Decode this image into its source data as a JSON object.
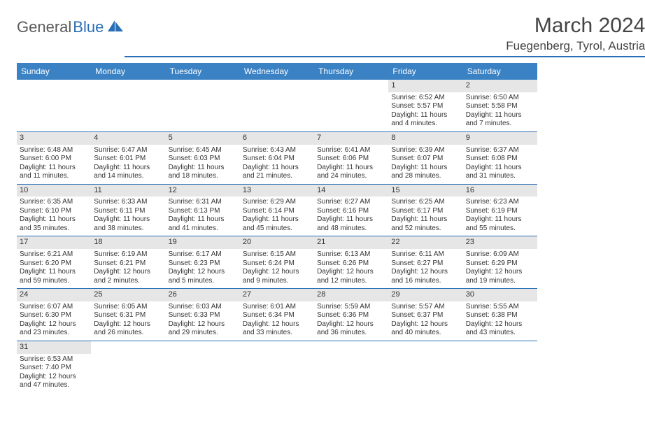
{
  "logo": {
    "part1": "General",
    "part2": "Blue"
  },
  "title": "March 2024",
  "location": "Fuegenberg, Tyrol, Austria",
  "colors": {
    "header_bg": "#3b82c4",
    "header_text": "#ffffff",
    "day_num_bg": "#e6e6e6",
    "border": "#2a6fb5",
    "text": "#333333",
    "logo_gray": "#5a5a5a",
    "logo_blue": "#2a6fb5"
  },
  "day_names": [
    "Sunday",
    "Monday",
    "Tuesday",
    "Wednesday",
    "Thursday",
    "Friday",
    "Saturday"
  ],
  "weeks": [
    [
      null,
      null,
      null,
      null,
      null,
      {
        "n": "1",
        "sunrise": "6:52 AM",
        "sunset": "5:57 PM",
        "daylight": "11 hours and 4 minutes."
      },
      {
        "n": "2",
        "sunrise": "6:50 AM",
        "sunset": "5:58 PM",
        "daylight": "11 hours and 7 minutes."
      }
    ],
    [
      {
        "n": "3",
        "sunrise": "6:48 AM",
        "sunset": "6:00 PM",
        "daylight": "11 hours and 11 minutes."
      },
      {
        "n": "4",
        "sunrise": "6:47 AM",
        "sunset": "6:01 PM",
        "daylight": "11 hours and 14 minutes."
      },
      {
        "n": "5",
        "sunrise": "6:45 AM",
        "sunset": "6:03 PM",
        "daylight": "11 hours and 18 minutes."
      },
      {
        "n": "6",
        "sunrise": "6:43 AM",
        "sunset": "6:04 PM",
        "daylight": "11 hours and 21 minutes."
      },
      {
        "n": "7",
        "sunrise": "6:41 AM",
        "sunset": "6:06 PM",
        "daylight": "11 hours and 24 minutes."
      },
      {
        "n": "8",
        "sunrise": "6:39 AM",
        "sunset": "6:07 PM",
        "daylight": "11 hours and 28 minutes."
      },
      {
        "n": "9",
        "sunrise": "6:37 AM",
        "sunset": "6:08 PM",
        "daylight": "11 hours and 31 minutes."
      }
    ],
    [
      {
        "n": "10",
        "sunrise": "6:35 AM",
        "sunset": "6:10 PM",
        "daylight": "11 hours and 35 minutes."
      },
      {
        "n": "11",
        "sunrise": "6:33 AM",
        "sunset": "6:11 PM",
        "daylight": "11 hours and 38 minutes."
      },
      {
        "n": "12",
        "sunrise": "6:31 AM",
        "sunset": "6:13 PM",
        "daylight": "11 hours and 41 minutes."
      },
      {
        "n": "13",
        "sunrise": "6:29 AM",
        "sunset": "6:14 PM",
        "daylight": "11 hours and 45 minutes."
      },
      {
        "n": "14",
        "sunrise": "6:27 AM",
        "sunset": "6:16 PM",
        "daylight": "11 hours and 48 minutes."
      },
      {
        "n": "15",
        "sunrise": "6:25 AM",
        "sunset": "6:17 PM",
        "daylight": "11 hours and 52 minutes."
      },
      {
        "n": "16",
        "sunrise": "6:23 AM",
        "sunset": "6:19 PM",
        "daylight": "11 hours and 55 minutes."
      }
    ],
    [
      {
        "n": "17",
        "sunrise": "6:21 AM",
        "sunset": "6:20 PM",
        "daylight": "11 hours and 59 minutes."
      },
      {
        "n": "18",
        "sunrise": "6:19 AM",
        "sunset": "6:21 PM",
        "daylight": "12 hours and 2 minutes."
      },
      {
        "n": "19",
        "sunrise": "6:17 AM",
        "sunset": "6:23 PM",
        "daylight": "12 hours and 5 minutes."
      },
      {
        "n": "20",
        "sunrise": "6:15 AM",
        "sunset": "6:24 PM",
        "daylight": "12 hours and 9 minutes."
      },
      {
        "n": "21",
        "sunrise": "6:13 AM",
        "sunset": "6:26 PM",
        "daylight": "12 hours and 12 minutes."
      },
      {
        "n": "22",
        "sunrise": "6:11 AM",
        "sunset": "6:27 PM",
        "daylight": "12 hours and 16 minutes."
      },
      {
        "n": "23",
        "sunrise": "6:09 AM",
        "sunset": "6:29 PM",
        "daylight": "12 hours and 19 minutes."
      }
    ],
    [
      {
        "n": "24",
        "sunrise": "6:07 AM",
        "sunset": "6:30 PM",
        "daylight": "12 hours and 23 minutes."
      },
      {
        "n": "25",
        "sunrise": "6:05 AM",
        "sunset": "6:31 PM",
        "daylight": "12 hours and 26 minutes."
      },
      {
        "n": "26",
        "sunrise": "6:03 AM",
        "sunset": "6:33 PM",
        "daylight": "12 hours and 29 minutes."
      },
      {
        "n": "27",
        "sunrise": "6:01 AM",
        "sunset": "6:34 PM",
        "daylight": "12 hours and 33 minutes."
      },
      {
        "n": "28",
        "sunrise": "5:59 AM",
        "sunset": "6:36 PM",
        "daylight": "12 hours and 36 minutes."
      },
      {
        "n": "29",
        "sunrise": "5:57 AM",
        "sunset": "6:37 PM",
        "daylight": "12 hours and 40 minutes."
      },
      {
        "n": "30",
        "sunrise": "5:55 AM",
        "sunset": "6:38 PM",
        "daylight": "12 hours and 43 minutes."
      }
    ],
    [
      {
        "n": "31",
        "sunrise": "6:53 AM",
        "sunset": "7:40 PM",
        "daylight": "12 hours and 47 minutes."
      },
      null,
      null,
      null,
      null,
      null,
      null
    ]
  ],
  "labels": {
    "sunrise": "Sunrise: ",
    "sunset": "Sunset: ",
    "daylight": "Daylight: "
  }
}
